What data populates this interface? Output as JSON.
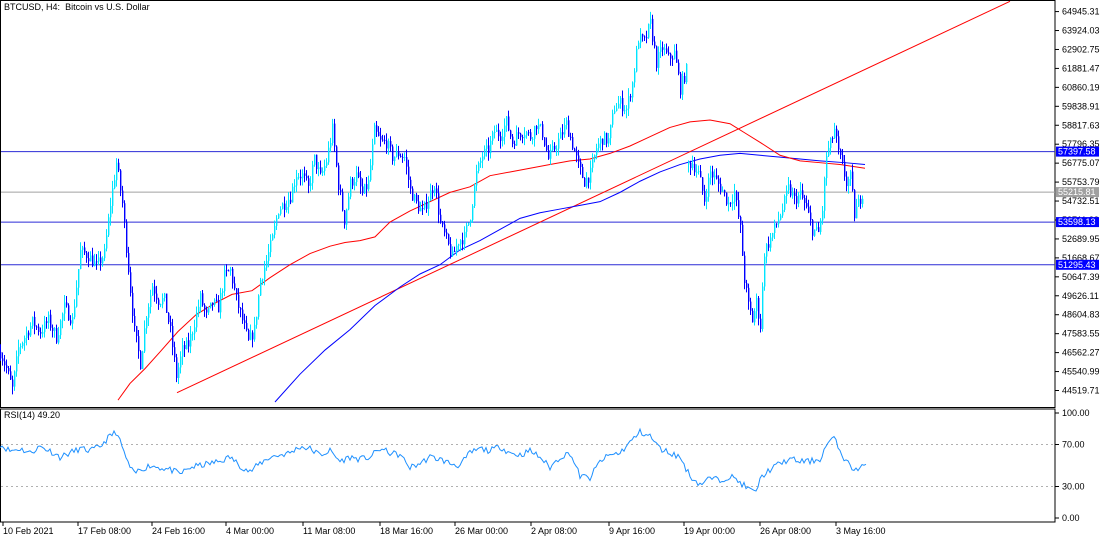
{
  "header": {
    "symbol": "BTCUSD",
    "timeframe": "H4",
    "description": "Bitcoin vs U.S. Dollar"
  },
  "rsi_label": {
    "name": "RSI(14)",
    "value": "49.20"
  },
  "colors": {
    "bull_candle": "#00e5ff",
    "bear_candle": "#0000ff",
    "ma_red": "#ff0000",
    "ma_blue": "#0000ff",
    "trendline": "#ff0000",
    "hline": "#2b2bd6",
    "current_price_line": "#a0a0a0",
    "rsi_line": "#1e90ff",
    "tag_bg": "#0000ff",
    "current_tag_bg": "#a0a0a0"
  },
  "chart_data": [
    {
      "type": "candlestick",
      "title": "BTCUSD, H4:  Bitcoin vs U.S. Dollar",
      "ylim": [
        43900,
        65300
      ],
      "y_ticks": [
        "64945.31",
        "63924.03",
        "62902.75",
        "61881.47",
        "60860.19",
        "59838.91",
        "58817.63",
        "57796.35",
        "56775.07",
        "55753.79",
        "54732.51",
        "53711.23",
        "52689.95",
        "51668.67",
        "50647.39",
        "49626.11",
        "48604.83",
        "47583.55",
        "46562.27",
        "45540.99",
        "44519.71"
      ],
      "x_labels": [
        "10 Feb 2021",
        "17 Feb 08:00",
        "24 Feb 16:00",
        "4 Mar 00:00",
        "11 Mar 08:00",
        "18 Mar 16:00",
        "26 Mar 00:00",
        "2 Apr 08:00",
        "9 Apr 16:00",
        "19 Apr 00:00",
        "26 Apr 08:00",
        "3 May 16:00"
      ],
      "horizontal_levels": [
        {
          "value": 57397.58,
          "label": "57397.58"
        },
        {
          "value": 53598.13,
          "label": "53598.13"
        },
        {
          "value": 51295.43,
          "label": "51295.43"
        }
      ],
      "current_price": {
        "value": 55215.81,
        "label": "55215.81"
      },
      "close_path": [
        [
          0,
          46600
        ],
        [
          6,
          45700
        ],
        [
          12,
          44600
        ],
        [
          18,
          46800
        ],
        [
          24,
          47400
        ],
        [
          32,
          48200
        ],
        [
          40,
          47700
        ],
        [
          48,
          48300
        ],
        [
          56,
          47400
        ],
        [
          64,
          49000
        ],
        [
          72,
          48300
        ],
        [
          80,
          52000
        ],
        [
          88,
          51800
        ],
        [
          96,
          51200
        ],
        [
          104,
          51900
        ],
        [
          110,
          54600
        ],
        [
          116,
          56800
        ],
        [
          122,
          54600
        ],
        [
          128,
          51100
        ],
        [
          134,
          47700
        ],
        [
          140,
          46000
        ],
        [
          146,
          48700
        ],
        [
          152,
          50200
        ],
        [
          158,
          49400
        ],
        [
          164,
          49400
        ],
        [
          170,
          47700
        ],
        [
          176,
          45300
        ],
        [
          182,
          46700
        ],
        [
          188,
          47000
        ],
        [
          194,
          48200
        ],
        [
          200,
          49500
        ],
        [
          206,
          48500
        ],
        [
          212,
          49200
        ],
        [
          218,
          49000
        ],
        [
          224,
          50700
        ],
        [
          230,
          51000
        ],
        [
          236,
          49400
        ],
        [
          242,
          48300
        ],
        [
          248,
          47100
        ],
        [
          254,
          47800
        ],
        [
          260,
          50500
        ],
        [
          266,
          51500
        ],
        [
          272,
          52700
        ],
        [
          278,
          54300
        ],
        [
          284,
          54600
        ],
        [
          290,
          55000
        ],
        [
          296,
          56200
        ],
        [
          302,
          56100
        ],
        [
          308,
          55400
        ],
        [
          314,
          57000
        ],
        [
          320,
          56000
        ],
        [
          326,
          56900
        ],
        [
          332,
          58600
        ],
        [
          338,
          55600
        ],
        [
          344,
          53700
        ],
        [
          350,
          55700
        ],
        [
          356,
          56100
        ],
        [
          362,
          55100
        ],
        [
          368,
          55700
        ],
        [
          374,
          58500
        ],
        [
          380,
          57900
        ],
        [
          386,
          57900
        ],
        [
          392,
          57100
        ],
        [
          398,
          57300
        ],
        [
          404,
          57100
        ],
        [
          410,
          55300
        ],
        [
          416,
          54600
        ],
        [
          422,
          54100
        ],
        [
          428,
          54900
        ],
        [
          434,
          55700
        ],
        [
          440,
          53500
        ],
        [
          446,
          52600
        ],
        [
          452,
          51700
        ],
        [
          458,
          52600
        ],
        [
          464,
          52800
        ],
        [
          470,
          54000
        ],
        [
          476,
          56200
        ],
        [
          482,
          57200
        ],
        [
          488,
          57500
        ],
        [
          494,
          58500
        ],
        [
          500,
          58300
        ],
        [
          506,
          59000
        ],
        [
          512,
          57900
        ],
        [
          518,
          58400
        ],
        [
          524,
          58500
        ],
        [
          530,
          58200
        ],
        [
          536,
          58900
        ],
        [
          542,
          58400
        ],
        [
          548,
          57000
        ],
        [
          554,
          57600
        ],
        [
          560,
          58200
        ],
        [
          566,
          58900
        ],
        [
          572,
          57800
        ],
        [
          578,
          56600
        ],
        [
          584,
          55800
        ],
        [
          590,
          56200
        ],
        [
          596,
          57600
        ],
        [
          602,
          58100
        ],
        [
          608,
          58000
        ],
        [
          614,
          59800
        ],
        [
          620,
          60000
        ],
        [
          626,
          59700
        ],
        [
          632,
          61100
        ],
        [
          638,
          63500
        ],
        [
          644,
          63300
        ],
        [
          650,
          64300
        ],
        [
          656,
          62200
        ],
        [
          662,
          63000
        ],
        [
          668,
          62400
        ],
        [
          674,
          62700
        ],
        [
          680,
          60800
        ],
        [
          686,
          61800
        ]
      ],
      "close_path_2": [
        [
          688,
          56700
        ],
        [
          692,
          56800
        ],
        [
          698,
          56200
        ],
        [
          704,
          54800
        ],
        [
          710,
          56300
        ],
        [
          716,
          55800
        ],
        [
          722,
          55300
        ],
        [
          728,
          54600
        ],
        [
          734,
          55200
        ],
        [
          740,
          53200
        ],
        [
          744,
          50500
        ],
        [
          748,
          49100
        ],
        [
          752,
          48300
        ],
        [
          756,
          49300
        ],
        [
          760,
          48000
        ],
        [
          764,
          52000
        ],
        [
          770,
          52700
        ],
        [
          776,
          53500
        ],
        [
          782,
          54300
        ],
        [
          788,
          55400
        ],
        [
          794,
          54800
        ],
        [
          800,
          55100
        ],
        [
          806,
          54300
        ],
        [
          812,
          53200
        ],
        [
          818,
          53000
        ],
        [
          822,
          54300
        ],
        [
          826,
          57200
        ],
        [
          830,
          57800
        ],
        [
          834,
          58600
        ],
        [
          838,
          57300
        ],
        [
          842,
          56600
        ],
        [
          846,
          55700
        ],
        [
          850,
          56000
        ],
        [
          854,
          54000
        ],
        [
          858,
          54600
        ],
        [
          862,
          55200
        ]
      ],
      "ma_red": [
        [
          118,
          44000
        ],
        [
          130,
          44900
        ],
        [
          145,
          45700
        ],
        [
          160,
          46600
        ],
        [
          178,
          47700
        ],
        [
          196,
          48600
        ],
        [
          214,
          49200
        ],
        [
          232,
          49700
        ],
        [
          252,
          49900
        ],
        [
          270,
          50600
        ],
        [
          290,
          51300
        ],
        [
          310,
          51900
        ],
        [
          330,
          52300
        ],
        [
          345,
          52500
        ],
        [
          360,
          52600
        ],
        [
          375,
          52800
        ],
        [
          390,
          53600
        ],
        [
          410,
          54200
        ],
        [
          430,
          54700
        ],
        [
          450,
          55200
        ],
        [
          470,
          55500
        ],
        [
          490,
          56100
        ],
        [
          510,
          56300
        ],
        [
          530,
          56500
        ],
        [
          550,
          56700
        ],
        [
          570,
          56900
        ],
        [
          590,
          57000
        ],
        [
          610,
          57300
        ],
        [
          630,
          57700
        ],
        [
          650,
          58200
        ],
        [
          670,
          58700
        ],
        [
          690,
          59000
        ],
        [
          710,
          59100
        ],
        [
          730,
          58900
        ],
        [
          745,
          58400
        ],
        [
          760,
          57900
        ],
        [
          780,
          57200
        ],
        [
          800,
          56900
        ],
        [
          820,
          56800
        ],
        [
          840,
          56700
        ],
        [
          865,
          56500
        ]
      ],
      "ma_blue": [
        [
          275,
          43900
        ],
        [
          300,
          45400
        ],
        [
          325,
          46700
        ],
        [
          350,
          47800
        ],
        [
          375,
          49100
        ],
        [
          400,
          50100
        ],
        [
          420,
          50800
        ],
        [
          440,
          51300
        ],
        [
          460,
          52100
        ],
        [
          480,
          52600
        ],
        [
          500,
          53200
        ],
        [
          520,
          53800
        ],
        [
          540,
          54100
        ],
        [
          560,
          54300
        ],
        [
          580,
          54500
        ],
        [
          600,
          54700
        ],
        [
          620,
          55200
        ],
        [
          640,
          55800
        ],
        [
          660,
          56300
        ],
        [
          680,
          56700
        ],
        [
          700,
          57000
        ],
        [
          720,
          57200
        ],
        [
          740,
          57300
        ],
        [
          760,
          57200
        ],
        [
          780,
          57100
        ],
        [
          800,
          57000
        ],
        [
          820,
          56900
        ],
        [
          845,
          56800
        ],
        [
          865,
          56700
        ]
      ],
      "trendline": [
        [
          177,
          44400
        ],
        [
          1010,
          65500
        ]
      ]
    },
    {
      "type": "line",
      "title": "RSI(14) 49.20",
      "ylim": [
        0,
        100
      ],
      "y_ticks": [
        "100.00",
        "70.00",
        "30.00",
        "0.00"
      ],
      "levels": [
        70,
        30
      ],
      "values": [
        [
          0,
          70
        ],
        [
          10,
          64
        ],
        [
          20,
          66
        ],
        [
          30,
          62
        ],
        [
          40,
          68
        ],
        [
          50,
          64
        ],
        [
          60,
          58
        ],
        [
          70,
          62
        ],
        [
          80,
          66
        ],
        [
          90,
          64
        ],
        [
          100,
          68
        ],
        [
          110,
          78
        ],
        [
          116,
          82
        ],
        [
          122,
          68
        ],
        [
          128,
          52
        ],
        [
          134,
          42
        ],
        [
          140,
          46
        ],
        [
          150,
          50
        ],
        [
          160,
          48
        ],
        [
          170,
          46
        ],
        [
          180,
          42
        ],
        [
          190,
          48
        ],
        [
          200,
          50
        ],
        [
          210,
          52
        ],
        [
          220,
          54
        ],
        [
          230,
          58
        ],
        [
          240,
          50
        ],
        [
          250,
          44
        ],
        [
          260,
          52
        ],
        [
          270,
          58
        ],
        [
          280,
          60
        ],
        [
          290,
          62
        ],
        [
          300,
          68
        ],
        [
          310,
          66
        ],
        [
          320,
          60
        ],
        [
          330,
          64
        ],
        [
          340,
          54
        ],
        [
          350,
          58
        ],
        [
          360,
          56
        ],
        [
          370,
          58
        ],
        [
          380,
          66
        ],
        [
          390,
          62
        ],
        [
          400,
          60
        ],
        [
          410,
          48
        ],
        [
          420,
          52
        ],
        [
          430,
          58
        ],
        [
          440,
          56
        ],
        [
          450,
          52
        ],
        [
          460,
          50
        ],
        [
          470,
          62
        ],
        [
          480,
          66
        ],
        [
          490,
          64
        ],
        [
          500,
          68
        ],
        [
          510,
          62
        ],
        [
          520,
          60
        ],
        [
          530,
          64
        ],
        [
          540,
          58
        ],
        [
          550,
          48
        ],
        [
          560,
          58
        ],
        [
          570,
          62
        ],
        [
          580,
          40
        ],
        [
          590,
          38
        ],
        [
          600,
          54
        ],
        [
          610,
          60
        ],
        [
          620,
          62
        ],
        [
          630,
          72
        ],
        [
          640,
          82
        ],
        [
          650,
          78
        ],
        [
          660,
          66
        ],
        [
          670,
          62
        ],
        [
          680,
          58
        ],
        [
          690,
          40
        ],
        [
          700,
          32
        ],
        [
          710,
          38
        ],
        [
          720,
          36
        ],
        [
          730,
          40
        ],
        [
          740,
          34
        ],
        [
          748,
          28
        ],
        [
          755,
          24
        ],
        [
          762,
          40
        ],
        [
          770,
          46
        ],
        [
          780,
          52
        ],
        [
          790,
          56
        ],
        [
          800,
          54
        ],
        [
          810,
          54
        ],
        [
          820,
          56
        ],
        [
          828,
          72
        ],
        [
          834,
          76
        ],
        [
          840,
          64
        ],
        [
          846,
          54
        ],
        [
          852,
          48
        ],
        [
          858,
          46
        ],
        [
          862,
          50
        ],
        [
          866,
          49
        ]
      ]
    }
  ]
}
